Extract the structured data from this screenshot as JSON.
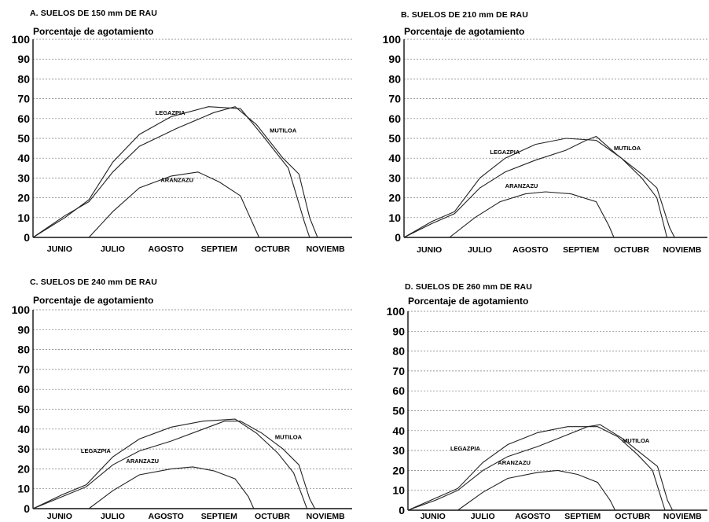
{
  "chart_data": [
    {
      "id": "a",
      "type": "line",
      "title": "A. SUELOS DE 150 mm DE RAU",
      "ylabel": "Porcentaje de agotamiento",
      "xlabel": "",
      "ylim": [
        0,
        100
      ],
      "yticks": [
        0,
        10,
        20,
        30,
        40,
        50,
        60,
        70,
        80,
        90,
        100
      ],
      "categories": [
        "JUNIO",
        "JULIO",
        "AGOSTO",
        "SEPTIEM",
        "OCTUBR",
        "NOVIEMB"
      ],
      "grid": true,
      "series": [
        {
          "name": "LEGAZPIA",
          "points": [
            [
              0,
              0
            ],
            [
              0.6,
              10
            ],
            [
              1.05,
              19
            ],
            [
              1.5,
              38
            ],
            [
              2.0,
              52
            ],
            [
              2.6,
              61
            ],
            [
              3.3,
              66
            ],
            [
              3.9,
              65
            ],
            [
              4.3,
              52
            ],
            [
              4.8,
              35
            ],
            [
              5.1,
              8
            ],
            [
              5.2,
              0
            ]
          ],
          "label_at": [
            2.3,
            62
          ]
        },
        {
          "name": "MUTILOA",
          "points": [
            [
              0,
              0
            ],
            [
              0.6,
              11
            ],
            [
              1.05,
              18
            ],
            [
              1.5,
              33
            ],
            [
              2.0,
              46
            ],
            [
              2.7,
              55
            ],
            [
              3.4,
              63
            ],
            [
              3.8,
              66
            ],
            [
              4.2,
              57
            ],
            [
              4.7,
              40
            ],
            [
              5.0,
              32
            ],
            [
              5.2,
              10
            ],
            [
              5.35,
              0
            ]
          ],
          "label_at": [
            4.45,
            53
          ]
        },
        {
          "name": "ARANZAZU",
          "points": [
            [
              1.05,
              0
            ],
            [
              1.5,
              13
            ],
            [
              2.0,
              25
            ],
            [
              2.6,
              31
            ],
            [
              3.1,
              33
            ],
            [
              3.5,
              28
            ],
            [
              3.9,
              21
            ],
            [
              4.05,
              12
            ],
            [
              4.25,
              0
            ]
          ],
          "label_at": [
            2.4,
            28
          ]
        }
      ]
    },
    {
      "id": "b",
      "type": "line",
      "title": "B. SUELOS DE 210 mm DE RAU",
      "ylabel": "Porcentaje de agotamiento",
      "xlabel": "",
      "ylim": [
        0,
        100
      ],
      "yticks": [
        0,
        10,
        20,
        30,
        40,
        50,
        60,
        70,
        80,
        90,
        100
      ],
      "categories": [
        "JUNIO",
        "JULIO",
        "AGOSTO",
        "SEPTIEM",
        "OCTUBR",
        "NOVIEMB"
      ],
      "grid": true,
      "series": [
        {
          "name": "LEGAZPIA",
          "points": [
            [
              0,
              0
            ],
            [
              0.55,
              8
            ],
            [
              1.0,
              13
            ],
            [
              1.5,
              30
            ],
            [
              2.0,
              40
            ],
            [
              2.6,
              47
            ],
            [
              3.2,
              50
            ],
            [
              3.8,
              49
            ],
            [
              4.3,
              40
            ],
            [
              4.7,
              30
            ],
            [
              5.0,
              20
            ],
            [
              5.2,
              0
            ]
          ],
          "label_at": [
            1.7,
            42
          ]
        },
        {
          "name": "MUTILOA",
          "points": [
            [
              0,
              0
            ],
            [
              0.55,
              7
            ],
            [
              1.0,
              12
            ],
            [
              1.5,
              25
            ],
            [
              2.0,
              33
            ],
            [
              2.6,
              39
            ],
            [
              3.2,
              44
            ],
            [
              3.6,
              49
            ],
            [
              3.8,
              51
            ],
            [
              4.2,
              42
            ],
            [
              4.7,
              32
            ],
            [
              5.0,
              25
            ],
            [
              5.25,
              5
            ],
            [
              5.35,
              0
            ]
          ],
          "label_at": [
            4.15,
            44
          ]
        },
        {
          "name": "ARANZAZU",
          "points": [
            [
              0.9,
              0
            ],
            [
              1.4,
              10
            ],
            [
              1.9,
              18
            ],
            [
              2.4,
              22
            ],
            [
              2.8,
              23
            ],
            [
              3.3,
              22
            ],
            [
              3.8,
              18
            ],
            [
              4.05,
              6
            ],
            [
              4.15,
              0
            ]
          ],
          "label_at": [
            2.0,
            25
          ]
        }
      ]
    },
    {
      "id": "c",
      "type": "line",
      "title": "C. SUELOS DE 240 mm DE RAU",
      "ylabel": "Porcentaje de agotamiento",
      "xlabel": "",
      "ylim": [
        0,
        100
      ],
      "yticks": [
        0,
        10,
        20,
        30,
        40,
        50,
        60,
        70,
        80,
        90,
        100
      ],
      "categories": [
        "JUNIO",
        "JULIO",
        "AGOSTO",
        "SEPTIEM",
        "OCTUBR",
        "NOVIEMB"
      ],
      "grid": true,
      "series": [
        {
          "name": "LEGAZPIA",
          "points": [
            [
              0,
              0
            ],
            [
              0.55,
              7
            ],
            [
              1.0,
              12
            ],
            [
              1.5,
              26
            ],
            [
              2.0,
              35
            ],
            [
              2.6,
              41
            ],
            [
              3.2,
              44
            ],
            [
              3.8,
              45
            ],
            [
              4.2,
              38
            ],
            [
              4.6,
              28
            ],
            [
              4.9,
              18
            ],
            [
              5.15,
              0
            ]
          ],
          "label_at": [
            0.9,
            28
          ]
        },
        {
          "name": "MUTILOA",
          "points": [
            [
              0,
              0
            ],
            [
              0.55,
              6
            ],
            [
              1.0,
              11
            ],
            [
              1.5,
              22
            ],
            [
              2.0,
              29
            ],
            [
              2.6,
              34
            ],
            [
              3.2,
              40
            ],
            [
              3.6,
              44
            ],
            [
              3.9,
              44
            ],
            [
              4.3,
              38
            ],
            [
              4.7,
              30
            ],
            [
              5.0,
              22
            ],
            [
              5.2,
              5
            ],
            [
              5.3,
              0
            ]
          ],
          "label_at": [
            4.55,
            35
          ]
        },
        {
          "name": "ARANZAZU",
          "points": [
            [
              1.05,
              0
            ],
            [
              1.5,
              9
            ],
            [
              2.0,
              17
            ],
            [
              2.6,
              20
            ],
            [
              3.0,
              21
            ],
            [
              3.4,
              19
            ],
            [
              3.8,
              15
            ],
            [
              4.05,
              6
            ],
            [
              4.15,
              0
            ]
          ],
          "label_at": [
            1.75,
            23
          ]
        }
      ]
    },
    {
      "id": "d",
      "type": "line",
      "title": "D. SUELOS DE 260 mm DE RAU",
      "ylabel": "Porcentaje de agotamiento",
      "xlabel": "",
      "ylim": [
        0,
        100
      ],
      "yticks": [
        0,
        10,
        20,
        30,
        40,
        50,
        60,
        70,
        80,
        90,
        100
      ],
      "categories": [
        "JUNIO",
        "JULIO",
        "AGOSTO",
        "SEPTIEM",
        "OCTUBR",
        "NOVIEMB"
      ],
      "grid": true,
      "series": [
        {
          "name": "LEGAZPIA",
          "points": [
            [
              0,
              0
            ],
            [
              0.55,
              6
            ],
            [
              1.0,
              11
            ],
            [
              1.5,
              24
            ],
            [
              2.0,
              33
            ],
            [
              2.6,
              39
            ],
            [
              3.2,
              42
            ],
            [
              3.8,
              42
            ],
            [
              4.2,
              37
            ],
            [
              4.6,
              28
            ],
            [
              4.9,
              20
            ],
            [
              5.15,
              0
            ]
          ],
          "label_at": [
            0.85,
            30
          ]
        },
        {
          "name": "MUTILOA",
          "points": [
            [
              0,
              0
            ],
            [
              0.55,
              5
            ],
            [
              1.0,
              10
            ],
            [
              1.5,
              20
            ],
            [
              2.0,
              27
            ],
            [
              2.6,
              32
            ],
            [
              3.2,
              38
            ],
            [
              3.6,
              42
            ],
            [
              3.85,
              43
            ],
            [
              4.3,
              36
            ],
            [
              4.7,
              28
            ],
            [
              5.0,
              22
            ],
            [
              5.2,
              5
            ],
            [
              5.3,
              0
            ]
          ],
          "label_at": [
            4.3,
            34
          ]
        },
        {
          "name": "ARANZAZU",
          "points": [
            [
              1.0,
              0
            ],
            [
              1.5,
              9
            ],
            [
              2.0,
              16
            ],
            [
              2.6,
              19
            ],
            [
              3.0,
              20
            ],
            [
              3.4,
              18
            ],
            [
              3.8,
              14
            ],
            [
              4.05,
              5
            ],
            [
              4.15,
              0
            ]
          ],
          "label_at": [
            1.8,
            23
          ]
        }
      ]
    }
  ]
}
